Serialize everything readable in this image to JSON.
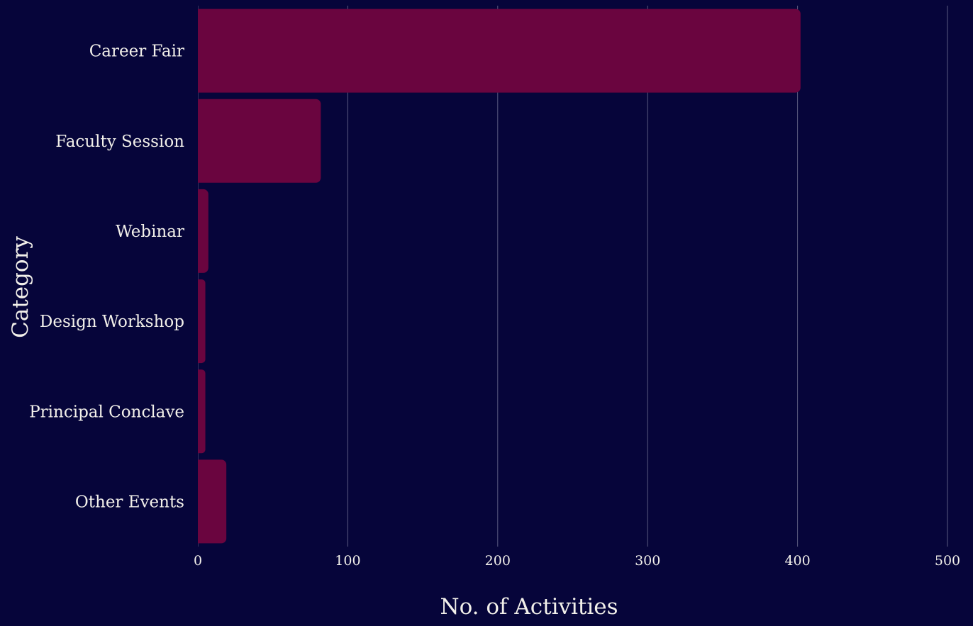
{
  "chart_data": {
    "type": "bar",
    "orientation": "horizontal",
    "categories": [
      "Career Fair",
      "Faculty Session",
      "Webinar",
      "Design Workshop",
      "Principal Conclave",
      "Other Events"
    ],
    "values": [
      402,
      82,
      7,
      5,
      5,
      19
    ],
    "xlabel": "No. of Activities",
    "ylabel": "Category",
    "xlim": [
      0,
      500
    ],
    "xticks": [
      0,
      100,
      200,
      300,
      400,
      500
    ],
    "xtick_labels": [
      "0",
      "100",
      "200",
      "300",
      "400",
      "500"
    ],
    "grid": "vertical",
    "legend": "none",
    "colors": {
      "background": "#06053a",
      "bar": "#6a053f",
      "grid": "#5a5a80",
      "text": "#f2f0ea"
    }
  }
}
